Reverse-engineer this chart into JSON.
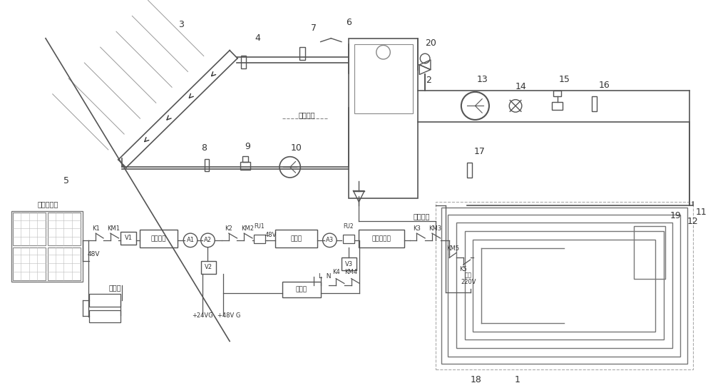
{
  "bg_color": "#ffffff",
  "lc": "#555555",
  "labels": {
    "solar": "太阳能电池",
    "battery": "蔻电池",
    "dc_reg": "直流稳压",
    "inverter": "逆变器",
    "charger": "充电器",
    "multi": "多功能电表",
    "domestic_heat": "生活用热",
    "domestic_elec": "生活用电"
  },
  "figsize": [
    10.0,
    5.37
  ],
  "dpi": 100
}
